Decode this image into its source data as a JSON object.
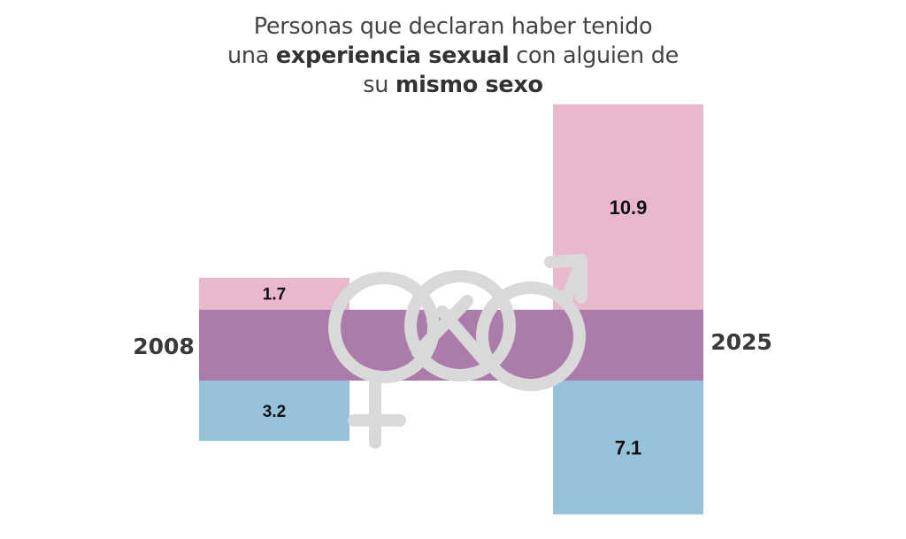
{
  "title": {
    "line1": "Personas que declaran haber tenido",
    "line2_pre": "una ",
    "line2_bold": "experiencia sexual",
    "line2_post": " con alguien de",
    "line3_pre": "su ",
    "line3_bold": "mismo sexo"
  },
  "colors": {
    "women": "#eab8cd",
    "men": "#96c2da",
    "band": "#ab7caa",
    "symbol": "#d9d9d9",
    "text": "#3a3a3a"
  },
  "icon": "bisexual-interlocked-gender-symbol-icon",
  "chart_data": {
    "type": "bar",
    "title": "Personas que declaran haber tenido una experiencia sexual con alguien de su mismo sexo",
    "categories": [
      "2008",
      "2025"
    ],
    "series": [
      {
        "name": "Mujeres",
        "color": "#eab8cd",
        "direction": "up",
        "values": [
          1.7,
          10.9
        ]
      },
      {
        "name": "Hombres",
        "color": "#96c2da",
        "direction": "down",
        "values": [
          3.2,
          7.1
        ]
      }
    ],
    "value_labels": [
      "1.7",
      "10.9",
      "3.2",
      "7.1"
    ],
    "unit": "%",
    "xlabel": "",
    "ylabel": "",
    "grid": false,
    "legend": "none"
  }
}
